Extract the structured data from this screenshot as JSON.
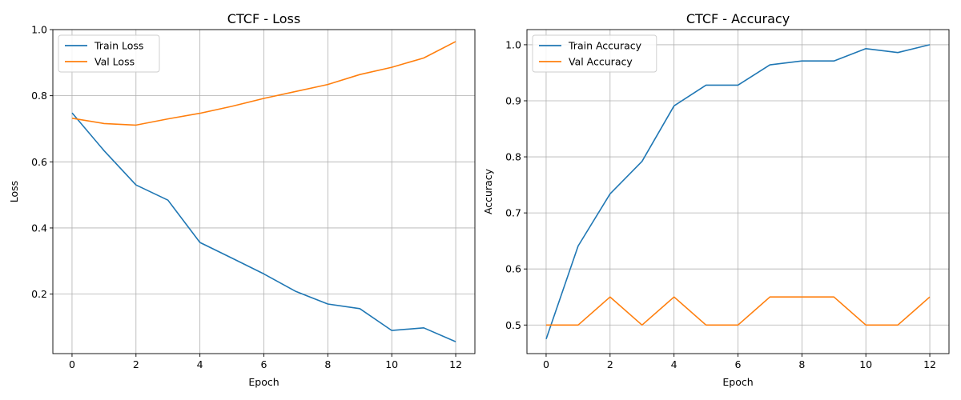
{
  "chart_data": [
    {
      "type": "line",
      "title": "CTCF - Loss",
      "xlabel": "Epoch",
      "ylabel": "Loss",
      "x": [
        0,
        1,
        2,
        3,
        4,
        5,
        6,
        7,
        8,
        9,
        10,
        11,
        12
      ],
      "xlim": [
        -0.6,
        12.6
      ],
      "ylim": [
        0.02,
        1.0
      ],
      "xticks": [
        0,
        2,
        4,
        6,
        8,
        10,
        12
      ],
      "yticks": [
        0.2,
        0.4,
        0.6,
        0.8,
        1.0
      ],
      "ytick_labels": [
        "0.2",
        "0.4",
        "0.6",
        "0.8",
        "1.0"
      ],
      "grid": true,
      "legend_position": "upper-left",
      "series": [
        {
          "name": "Train Loss",
          "color": "#1f77b4",
          "values": [
            0.748,
            0.634,
            0.53,
            0.484,
            0.356,
            0.309,
            0.261,
            0.208,
            0.17,
            0.156,
            0.09,
            0.098,
            0.056
          ]
        },
        {
          "name": "Val Loss",
          "color": "#ff7f0e",
          "values": [
            0.732,
            0.716,
            0.711,
            0.73,
            0.747,
            0.768,
            0.792,
            0.813,
            0.834,
            0.864,
            0.886,
            0.914,
            0.964
          ]
        }
      ]
    },
    {
      "type": "line",
      "title": "CTCF - Accuracy",
      "xlabel": "Epoch",
      "ylabel": "Accuracy",
      "x": [
        0,
        1,
        2,
        3,
        4,
        5,
        6,
        7,
        8,
        9,
        10,
        11,
        12
      ],
      "xlim": [
        -0.6,
        12.6
      ],
      "ylim": [
        0.449,
        1.027
      ],
      "xticks": [
        0,
        2,
        4,
        6,
        8,
        10,
        12
      ],
      "yticks": [
        0.5,
        0.6,
        0.7,
        0.8,
        0.9,
        1.0
      ],
      "ytick_labels": [
        "0.5",
        "0.6",
        "0.7",
        "0.8",
        "0.9",
        "1.0"
      ],
      "grid": true,
      "legend_position": "upper-left",
      "series": [
        {
          "name": "Train Accuracy",
          "color": "#1f77b4",
          "values": [
            0.475,
            0.641,
            0.734,
            0.792,
            0.891,
            0.928,
            0.928,
            0.964,
            0.971,
            0.971,
            0.993,
            0.986,
            1.0
          ]
        },
        {
          "name": "Val Accuracy",
          "color": "#ff7f0e",
          "values": [
            0.5,
            0.5,
            0.55,
            0.5,
            0.55,
            0.5,
            0.5,
            0.55,
            0.55,
            0.55,
            0.5,
            0.5,
            0.55
          ]
        }
      ]
    }
  ]
}
